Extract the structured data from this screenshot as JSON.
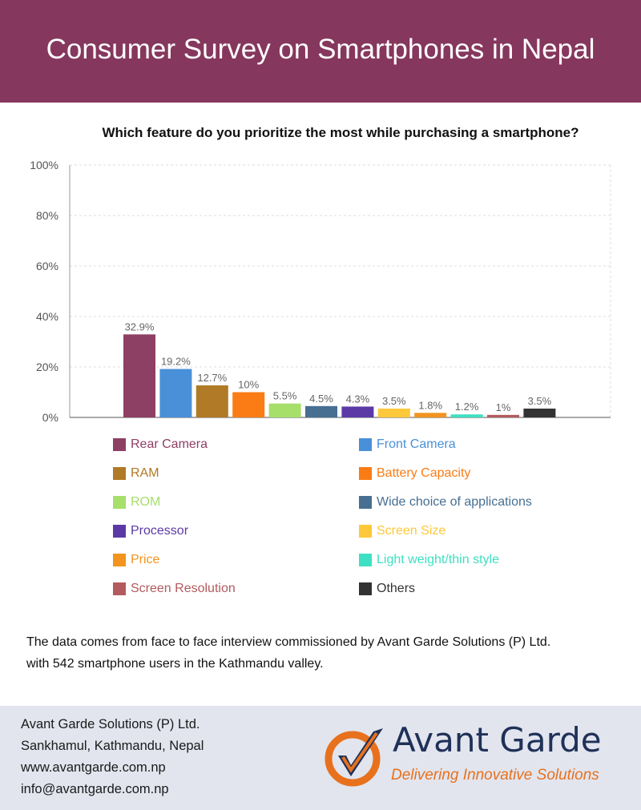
{
  "header": {
    "title": "Consumer Survey on Smartphones in Nepal"
  },
  "chart_data": {
    "type": "bar",
    "title": "Which feature do you prioritize the most while purchasing a smartphone?",
    "xlabel": "",
    "ylabel": "",
    "ylim": [
      0,
      100
    ],
    "yticks": [
      "0%",
      "20%",
      "40%",
      "60%",
      "80%",
      "100%"
    ],
    "yticks_values": [
      0,
      20,
      40,
      60,
      80,
      100
    ],
    "grid": true,
    "legend_position": "bottom",
    "categories": [
      "Rear Camera",
      "Front Camera",
      "RAM",
      "Battery Capacity",
      "ROM",
      "Wide choice of applications",
      "Processor",
      "Screen Size",
      "Price",
      "Light weight/thin style",
      "Screen Resolution",
      "Others"
    ],
    "values": [
      32.9,
      19.2,
      12.7,
      10,
      5.5,
      4.5,
      4.3,
      3.5,
      1.8,
      1.2,
      1,
      3.5
    ],
    "data_labels": [
      "32.9%",
      "19.2%",
      "12.7%",
      "10%",
      "5.5%",
      "4.5%",
      "4.3%",
      "3.5%",
      "1.8%",
      "1.2%",
      "1%",
      "3.5%"
    ],
    "colors": [
      "#8e3f64",
      "#4a90d9",
      "#b07a26",
      "#fb7c15",
      "#a6df6a",
      "#466f92",
      "#5b3aa6",
      "#fdc83a",
      "#f2941e",
      "#3de0c2",
      "#b35a5e",
      "#333333"
    ]
  },
  "footnote": {
    "line1": "The data comes from face to face interview commissioned by Avant Garde Solutions (P) Ltd.",
    "line2": "with 542 smartphone users in the Kathmandu valley."
  },
  "footer": {
    "company": "Avant Garde Solutions (P) Ltd.",
    "address": "Sankhamul, Kathmandu, Nepal",
    "website": "www.avantgarde.com.np",
    "email": "info@avantgarde.com.np"
  },
  "logo": {
    "name": "Avant Garde",
    "tagline": "Delivering Innovative Solutions",
    "colors": {
      "orange": "#e8711d",
      "navy": "#1f3158"
    }
  }
}
